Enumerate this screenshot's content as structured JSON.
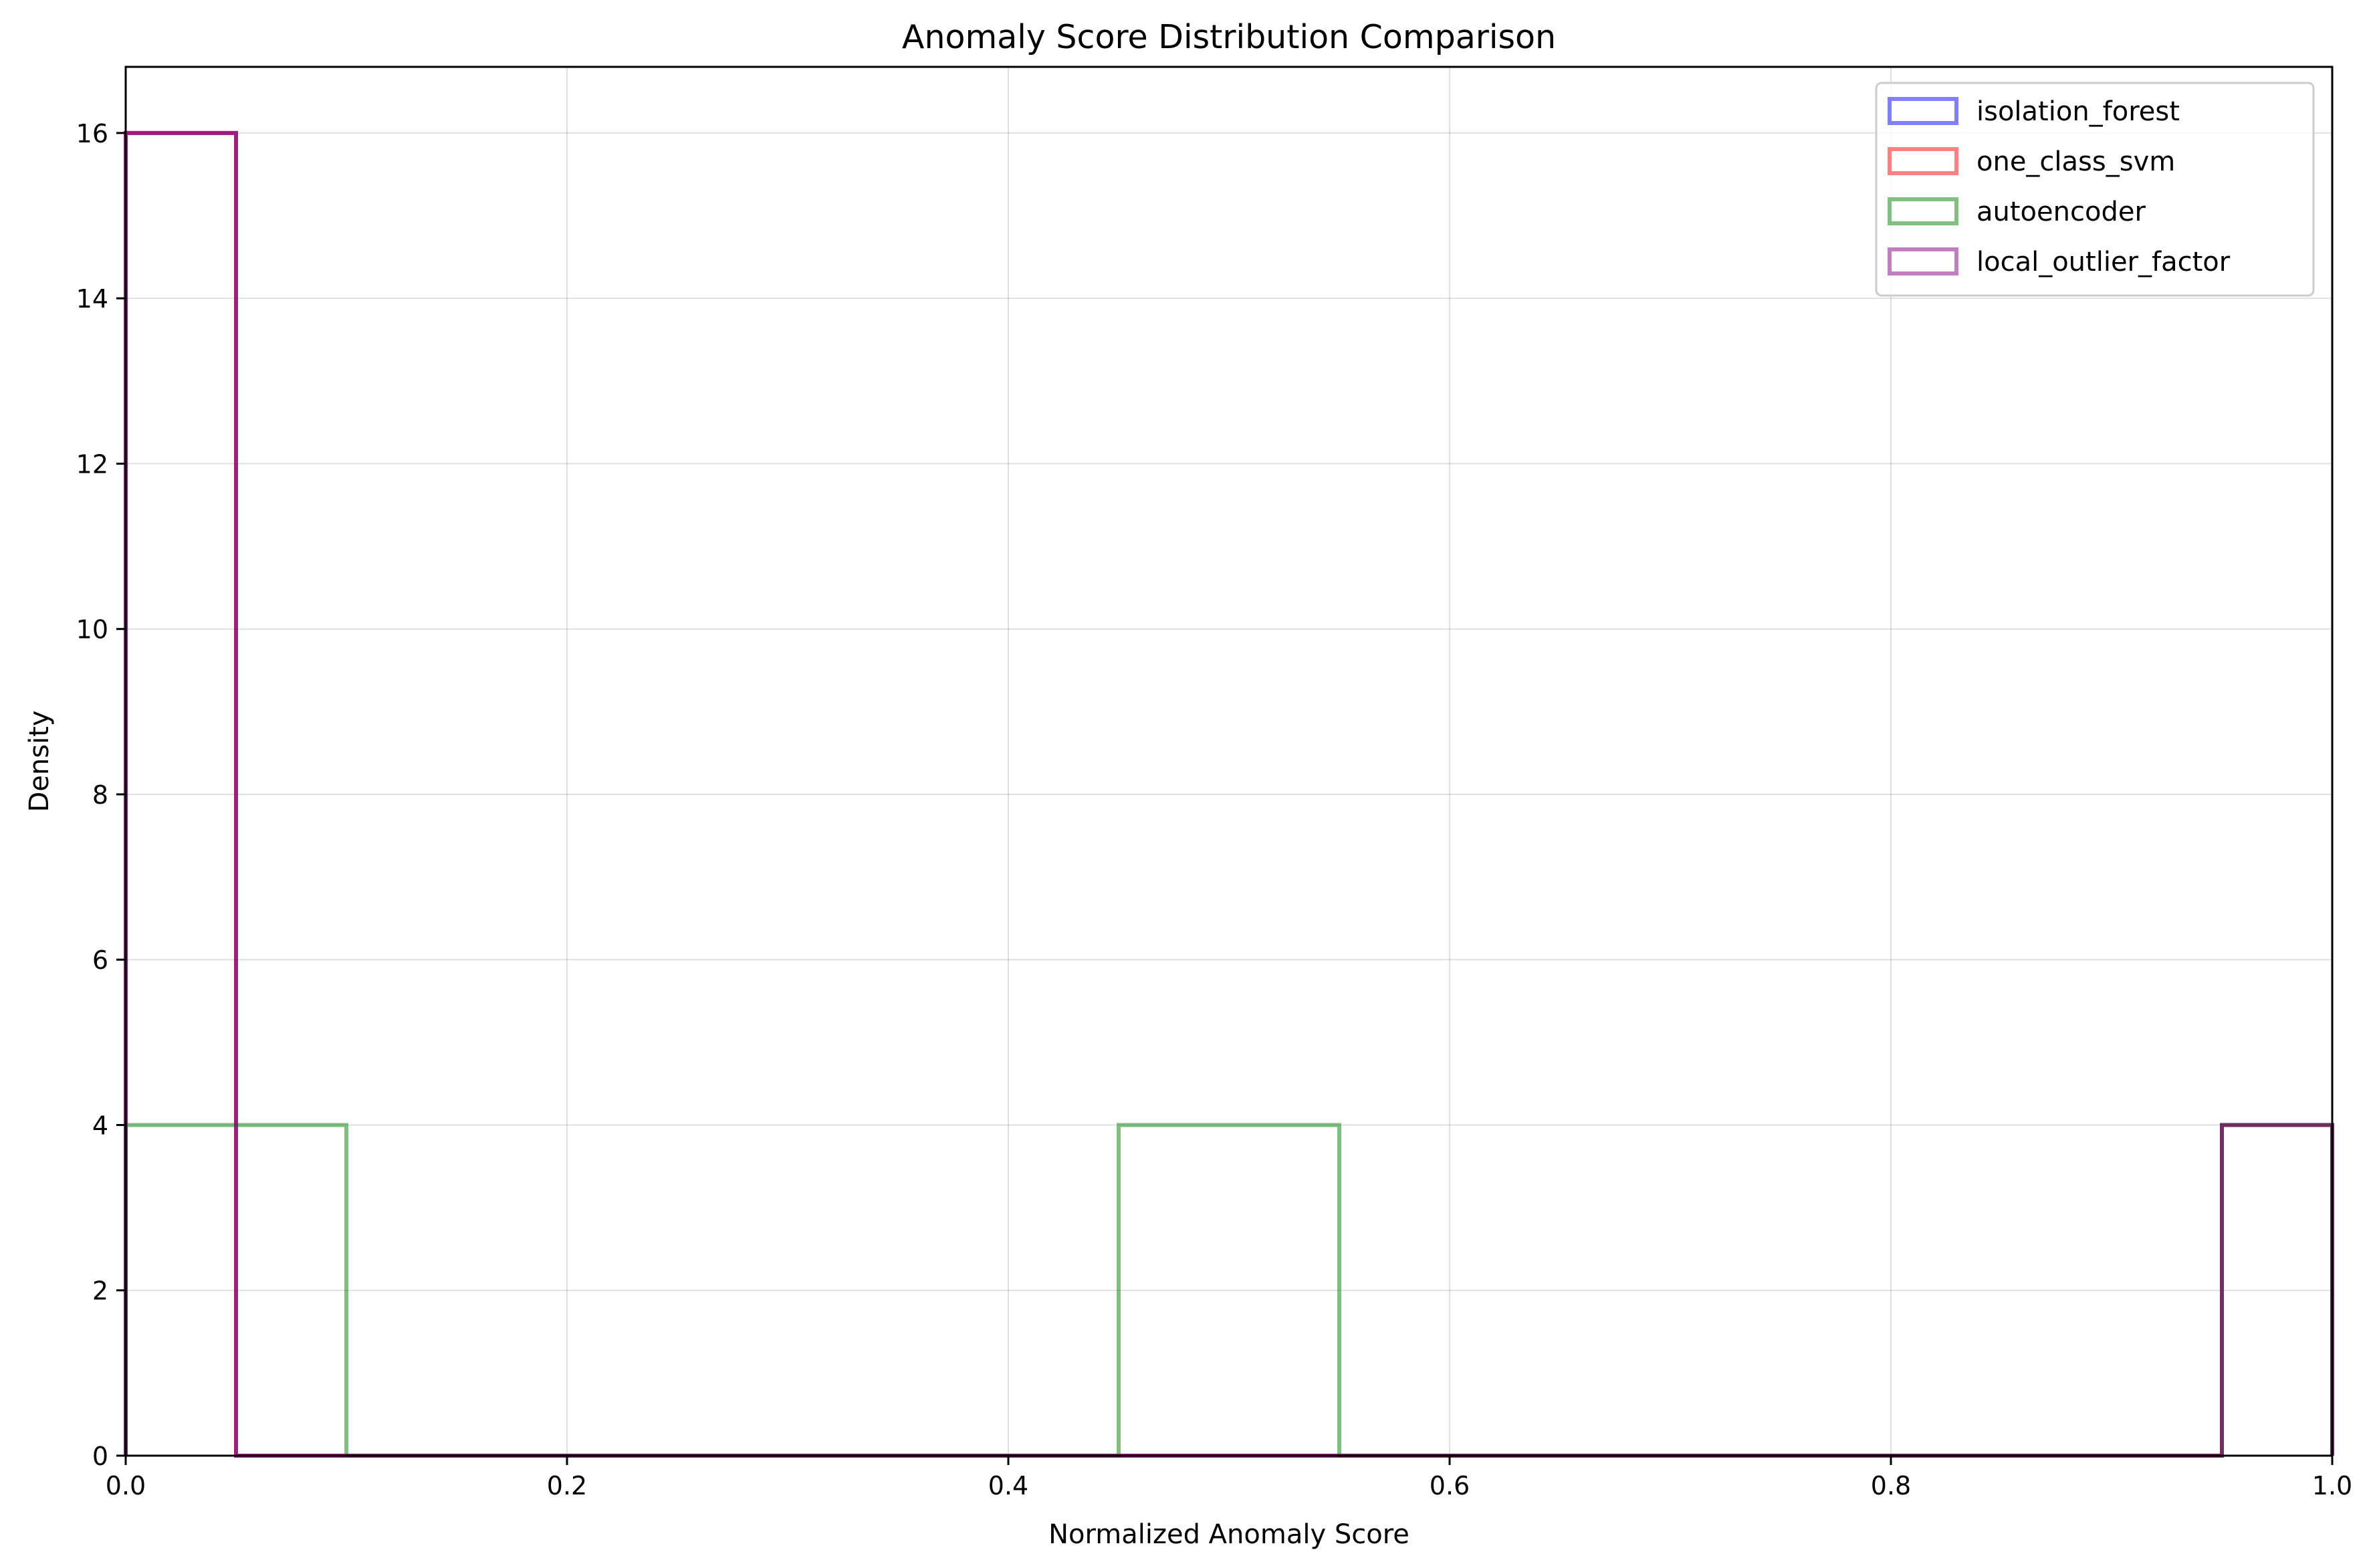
{
  "chart_data": {
    "type": "histogram",
    "title": "Anomaly Score Distribution Comparison",
    "xlabel": "Normalized Anomaly Score",
    "ylabel": "Density",
    "xlim": [
      0,
      1
    ],
    "ylim": [
      0,
      16.8
    ],
    "xticks": [
      0.0,
      0.2,
      0.4,
      0.6,
      0.8,
      1.0
    ],
    "xtick_labels": [
      "0.0",
      "0.2",
      "0.4",
      "0.6",
      "0.8",
      "1.0"
    ],
    "yticks": [
      0,
      2,
      4,
      6,
      8,
      10,
      12,
      14,
      16
    ],
    "ytick_labels": [
      "0",
      "2",
      "4",
      "6",
      "8",
      "10",
      "12",
      "14",
      "16"
    ],
    "grid": true,
    "legend_position": "top-right",
    "bin_edges": [
      0.0,
      0.05,
      0.1,
      0.15,
      0.2,
      0.25,
      0.3,
      0.35,
      0.4,
      0.45,
      0.5,
      0.55,
      0.6,
      0.65,
      0.7,
      0.75,
      0.8,
      0.85,
      0.9,
      0.95,
      1.0
    ],
    "series": [
      {
        "name": "isolation_forest",
        "color": "#0000ff",
        "values": [
          16,
          0,
          0,
          0,
          0,
          0,
          0,
          0,
          0,
          0,
          0,
          0,
          0,
          0,
          0,
          0,
          0,
          0,
          0,
          4
        ]
      },
      {
        "name": "one_class_svm",
        "color": "#ff0000",
        "values": [
          16,
          0,
          0,
          0,
          0,
          0,
          0,
          0,
          0,
          0,
          0,
          0,
          0,
          0,
          0,
          0,
          0,
          0,
          0,
          4
        ]
      },
      {
        "name": "autoencoder",
        "color": "#008000",
        "values": [
          4,
          4,
          0,
          0,
          0,
          0,
          0,
          0,
          0,
          4,
          4,
          0,
          0,
          0,
          0,
          0,
          0,
          0,
          0,
          4
        ]
      },
      {
        "name": "local_outlier_factor",
        "color": "#800080",
        "values": [
          16,
          0,
          0,
          0,
          0,
          0,
          0,
          0,
          0,
          0,
          0,
          0,
          0,
          0,
          0,
          0,
          0,
          0,
          0,
          4
        ]
      }
    ]
  }
}
